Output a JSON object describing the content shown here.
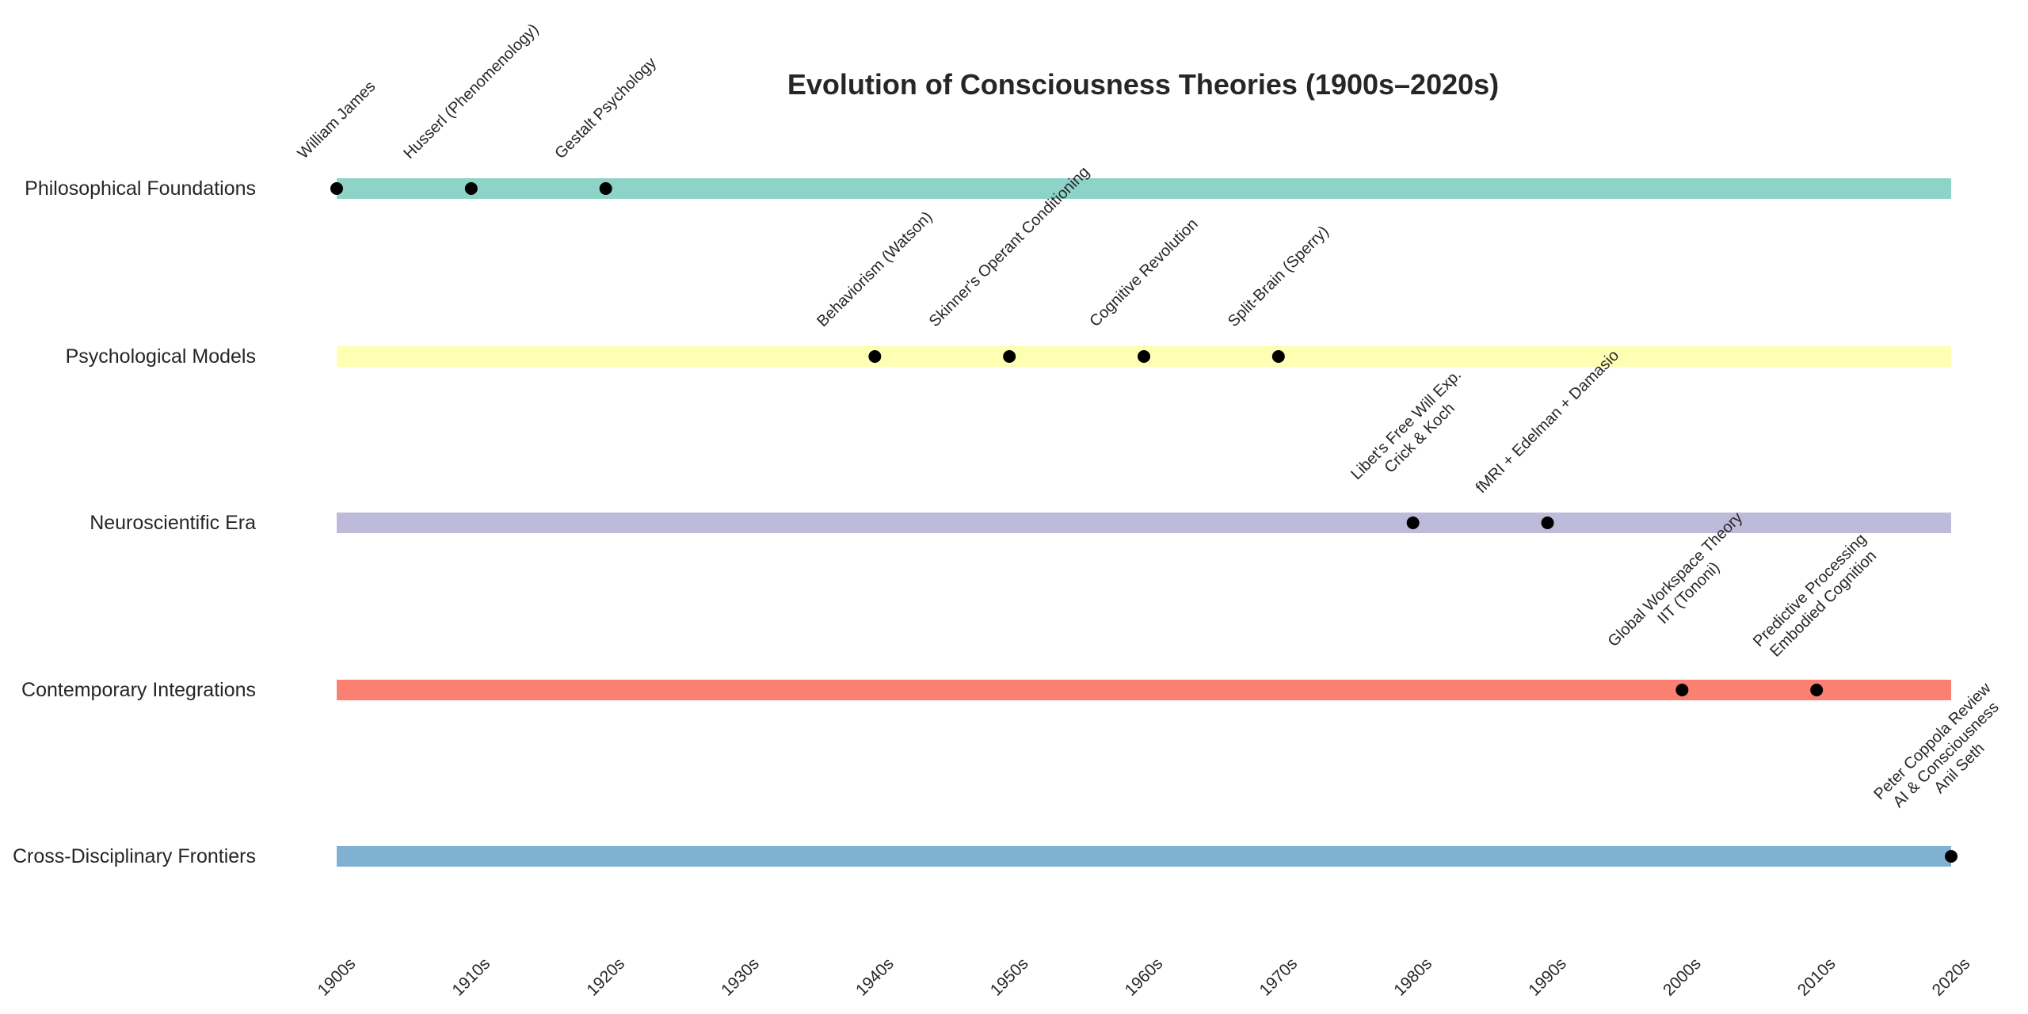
{
  "chart_data": {
    "type": "timeline",
    "title": "Evolution of Consciousness Theories (1900s–2020s)",
    "xlim": [
      1900,
      2020
    ],
    "x_ticks": [
      1900,
      1910,
      1920,
      1930,
      1940,
      1950,
      1960,
      1970,
      1980,
      1990,
      2000,
      2010,
      2020
    ],
    "x_tick_labels": [
      "1900s",
      "1910s",
      "1920s",
      "1930s",
      "1940s",
      "1950s",
      "1960s",
      "1970s",
      "1980s",
      "1990s",
      "2000s",
      "2010s",
      "2020s"
    ],
    "grid": false,
    "rows": [
      {
        "name": "Philosophical Foundations",
        "color": "#8dd3c7",
        "events": [
          {
            "year": 1900,
            "labels": [
              "William James"
            ]
          },
          {
            "year": 1910,
            "labels": [
              "Husserl (Phenomenology)"
            ]
          },
          {
            "year": 1920,
            "labels": [
              "Gestalt Psychology"
            ]
          }
        ]
      },
      {
        "name": "Psychological Models",
        "color": "#ffffb3",
        "events": [
          {
            "year": 1940,
            "labels": [
              "Behaviorism (Watson)"
            ]
          },
          {
            "year": 1950,
            "labels": [
              "Skinner's Operant Conditioning"
            ]
          },
          {
            "year": 1960,
            "labels": [
              "Cognitive Revolution"
            ]
          },
          {
            "year": 1970,
            "labels": [
              "Split-Brain (Sperry)"
            ]
          }
        ]
      },
      {
        "name": "Neuroscientific Era",
        "color": "#bebada",
        "events": [
          {
            "year": 1980,
            "labels": [
              "Libet's Free Will Exp.",
              "Crick & Koch"
            ]
          },
          {
            "year": 1990,
            "labels": [
              "fMRI + Edelman + Damasio"
            ]
          }
        ]
      },
      {
        "name": "Contemporary Integrations",
        "color": "#fb8072",
        "events": [
          {
            "year": 2000,
            "labels": [
              "Global Workspace Theory",
              "IIT (Tononi)"
            ]
          },
          {
            "year": 2010,
            "labels": [
              "Predictive Processing"
            ]
          },
          {
            "year": 2010,
            "labels": [
              "Embodied Cognition"
            ]
          }
        ]
      },
      {
        "name": "Cross-Disciplinary Frontiers",
        "color": "#80b1d3",
        "events": [
          {
            "year": 2020,
            "labels": [
              "Peter Coppola Review"
            ]
          },
          {
            "year": 2020,
            "labels": [
              "AI & Consciousness",
              "Anil Seth"
            ]
          }
        ]
      }
    ]
  }
}
